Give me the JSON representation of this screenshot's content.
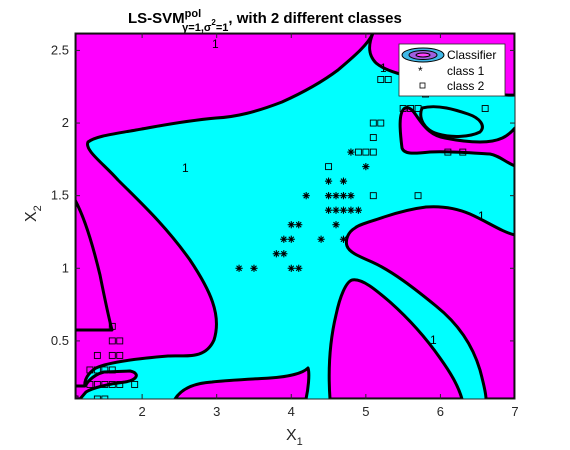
{
  "chart_data": {
    "type": "contour",
    "title": {
      "main": "LS-SVM",
      "sup": "pol",
      "sub_gamma": "γ=1,σ",
      "sub_sup": "2",
      "sub_rest": "=1",
      "rest": ", with 2 different classes"
    },
    "xlabel": {
      "base": "X",
      "sub": "1"
    },
    "ylabel": {
      "base": "X",
      "sub": "2"
    },
    "xlim": [
      1.1,
      7.0
    ],
    "ylim": [
      0.1,
      2.62
    ],
    "xticks": [
      2,
      3,
      4,
      5,
      6,
      7
    ],
    "yticks": [
      0.5,
      1,
      1.5,
      2,
      2.5
    ],
    "xtick_labels": [
      "2",
      "3",
      "4",
      "5",
      "6",
      "7"
    ],
    "ytick_labels": [
      "0.5",
      "1",
      "1.5",
      "2",
      "2.5"
    ],
    "grid": false,
    "legend_position": "top-right",
    "legend": [
      "Classifier",
      "class 1",
      "class 2"
    ],
    "region_colors": {
      "class1": "#00ffff",
      "class2": "#ff00ff"
    },
    "boundary_label": "1",
    "series": [
      {
        "name": "class 1",
        "marker": "*",
        "points": [
          [
            3.3,
            1.0
          ],
          [
            3.5,
            1.0
          ],
          [
            4.0,
            1.0
          ],
          [
            4.1,
            1.0
          ],
          [
            3.8,
            1.1
          ],
          [
            3.9,
            1.1
          ],
          [
            3.9,
            1.2
          ],
          [
            4.0,
            1.2
          ],
          [
            4.4,
            1.2
          ],
          [
            4.7,
            1.2
          ],
          [
            4.0,
            1.3
          ],
          [
            4.1,
            1.3
          ],
          [
            4.6,
            1.3
          ],
          [
            4.5,
            1.4
          ],
          [
            4.6,
            1.4
          ],
          [
            4.7,
            1.4
          ],
          [
            4.8,
            1.4
          ],
          [
            4.9,
            1.4
          ],
          [
            4.2,
            1.5
          ],
          [
            4.5,
            1.5
          ],
          [
            4.6,
            1.5
          ],
          [
            4.7,
            1.5
          ],
          [
            4.8,
            1.5
          ],
          [
            4.5,
            1.6
          ],
          [
            4.7,
            1.6
          ],
          [
            4.8,
            1.8
          ],
          [
            5.0,
            1.7
          ]
        ]
      },
      {
        "name": "class 2",
        "marker": "s",
        "points": [
          [
            1.1,
            0.1
          ],
          [
            1.4,
            0.1
          ],
          [
            1.5,
            0.1
          ],
          [
            1.3,
            0.2
          ],
          [
            1.4,
            0.2
          ],
          [
            1.5,
            0.2
          ],
          [
            1.6,
            0.2
          ],
          [
            1.7,
            0.2
          ],
          [
            1.9,
            0.2
          ],
          [
            1.3,
            0.3
          ],
          [
            1.4,
            0.3
          ],
          [
            1.5,
            0.3
          ],
          [
            1.6,
            0.3
          ],
          [
            1.4,
            0.4
          ],
          [
            1.6,
            0.4
          ],
          [
            1.7,
            0.4
          ],
          [
            1.6,
            0.5
          ],
          [
            1.7,
            0.5
          ],
          [
            1.6,
            0.6
          ],
          [
            4.5,
            1.7
          ],
          [
            4.9,
            1.8
          ],
          [
            5.0,
            1.8
          ],
          [
            5.1,
            1.8
          ],
          [
            5.1,
            1.5
          ],
          [
            5.1,
            1.9
          ],
          [
            5.1,
            2.0
          ],
          [
            5.2,
            2.0
          ],
          [
            5.2,
            2.3
          ],
          [
            5.6,
            2.1
          ],
          [
            5.7,
            2.1
          ],
          [
            5.8,
            2.2
          ],
          [
            5.3,
            2.3
          ],
          [
            6.1,
            1.8
          ],
          [
            6.3,
            1.8
          ],
          [
            6.6,
            2.1
          ],
          [
            5.7,
            1.5
          ],
          [
            5.6,
            2.4
          ],
          [
            5.5,
            2.1
          ]
        ]
      }
    ]
  }
}
